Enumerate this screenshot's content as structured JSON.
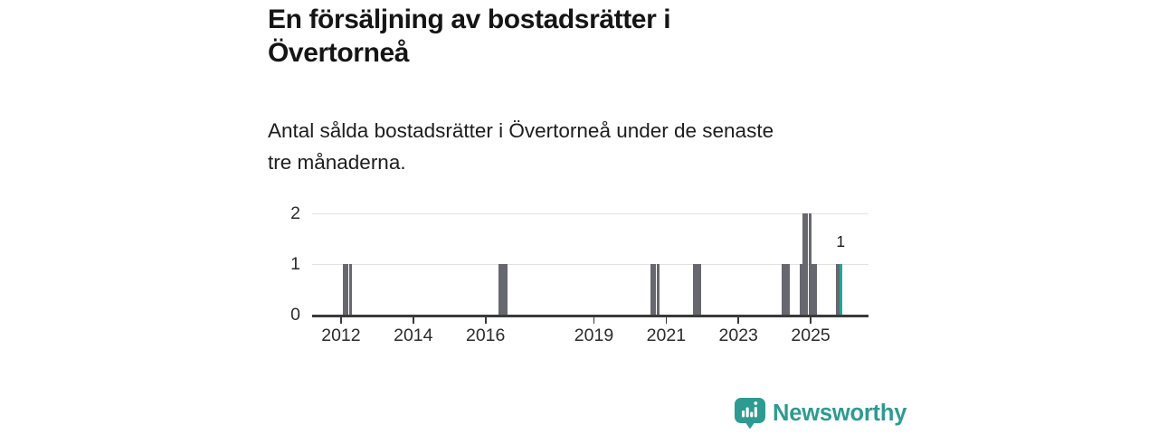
{
  "title": {
    "lines": [
      "En försäljning av bostadsrätter i",
      "Övertorneå"
    ]
  },
  "subtitle": {
    "lines": [
      "Antal sålda bostadsrätter i Övertorneå under de senaste",
      "tre månaderna."
    ]
  },
  "chart_data": {
    "type": "bar",
    "title": "En försäljning av bostadsrätter i Övertorneå",
    "subtitle": "Antal sålda bostadsrätter i Övertorneå under de senaste tre månaderna.",
    "grid": "horizontal",
    "legend": false,
    "x_axis": {
      "min": 2011.2,
      "max": 2026.6,
      "ticks": [
        2012,
        2014,
        2016,
        2019,
        2021,
        2023,
        2025
      ],
      "tick_labels": [
        "2012",
        "2014",
        "2016",
        "2019",
        "2021",
        "2023",
        "2025"
      ]
    },
    "y_axis": {
      "min": 0,
      "max": 2,
      "ticks": [
        0,
        1,
        2
      ],
      "tick_labels": [
        "0",
        "1",
        "2"
      ]
    },
    "bar_width_years": 0.0833,
    "colors": {
      "default": "#67676F",
      "highlight": "#1FA79B"
    },
    "bars": [
      {
        "x": 2012.05,
        "value": 1
      },
      {
        "x": 2012.133,
        "value": 1
      },
      {
        "x": 2012.217,
        "value": 1
      },
      {
        "x": 2016.37,
        "value": 1
      },
      {
        "x": 2016.453,
        "value": 1
      },
      {
        "x": 2016.537,
        "value": 1
      },
      {
        "x": 2020.565,
        "value": 1
      },
      {
        "x": 2020.648,
        "value": 1
      },
      {
        "x": 2020.732,
        "value": 1
      },
      {
        "x": 2021.73,
        "value": 1
      },
      {
        "x": 2021.813,
        "value": 1
      },
      {
        "x": 2021.897,
        "value": 1
      },
      {
        "x": 2024.19,
        "value": 1
      },
      {
        "x": 2024.273,
        "value": 1
      },
      {
        "x": 2024.357,
        "value": 1
      },
      {
        "x": 2024.69,
        "value": 1
      },
      {
        "x": 2024.773,
        "value": 2
      },
      {
        "x": 2024.857,
        "value": 2
      },
      {
        "x": 2024.94,
        "value": 2
      },
      {
        "x": 2025.023,
        "value": 1
      },
      {
        "x": 2025.107,
        "value": 1
      },
      {
        "x": 2025.71,
        "value": 1
      },
      {
        "x": 2025.793,
        "value": 1,
        "highlight": true,
        "label": "1"
      }
    ]
  },
  "footer": {
    "brand": "Newsworthy",
    "brand_color": "#2D9B91"
  }
}
